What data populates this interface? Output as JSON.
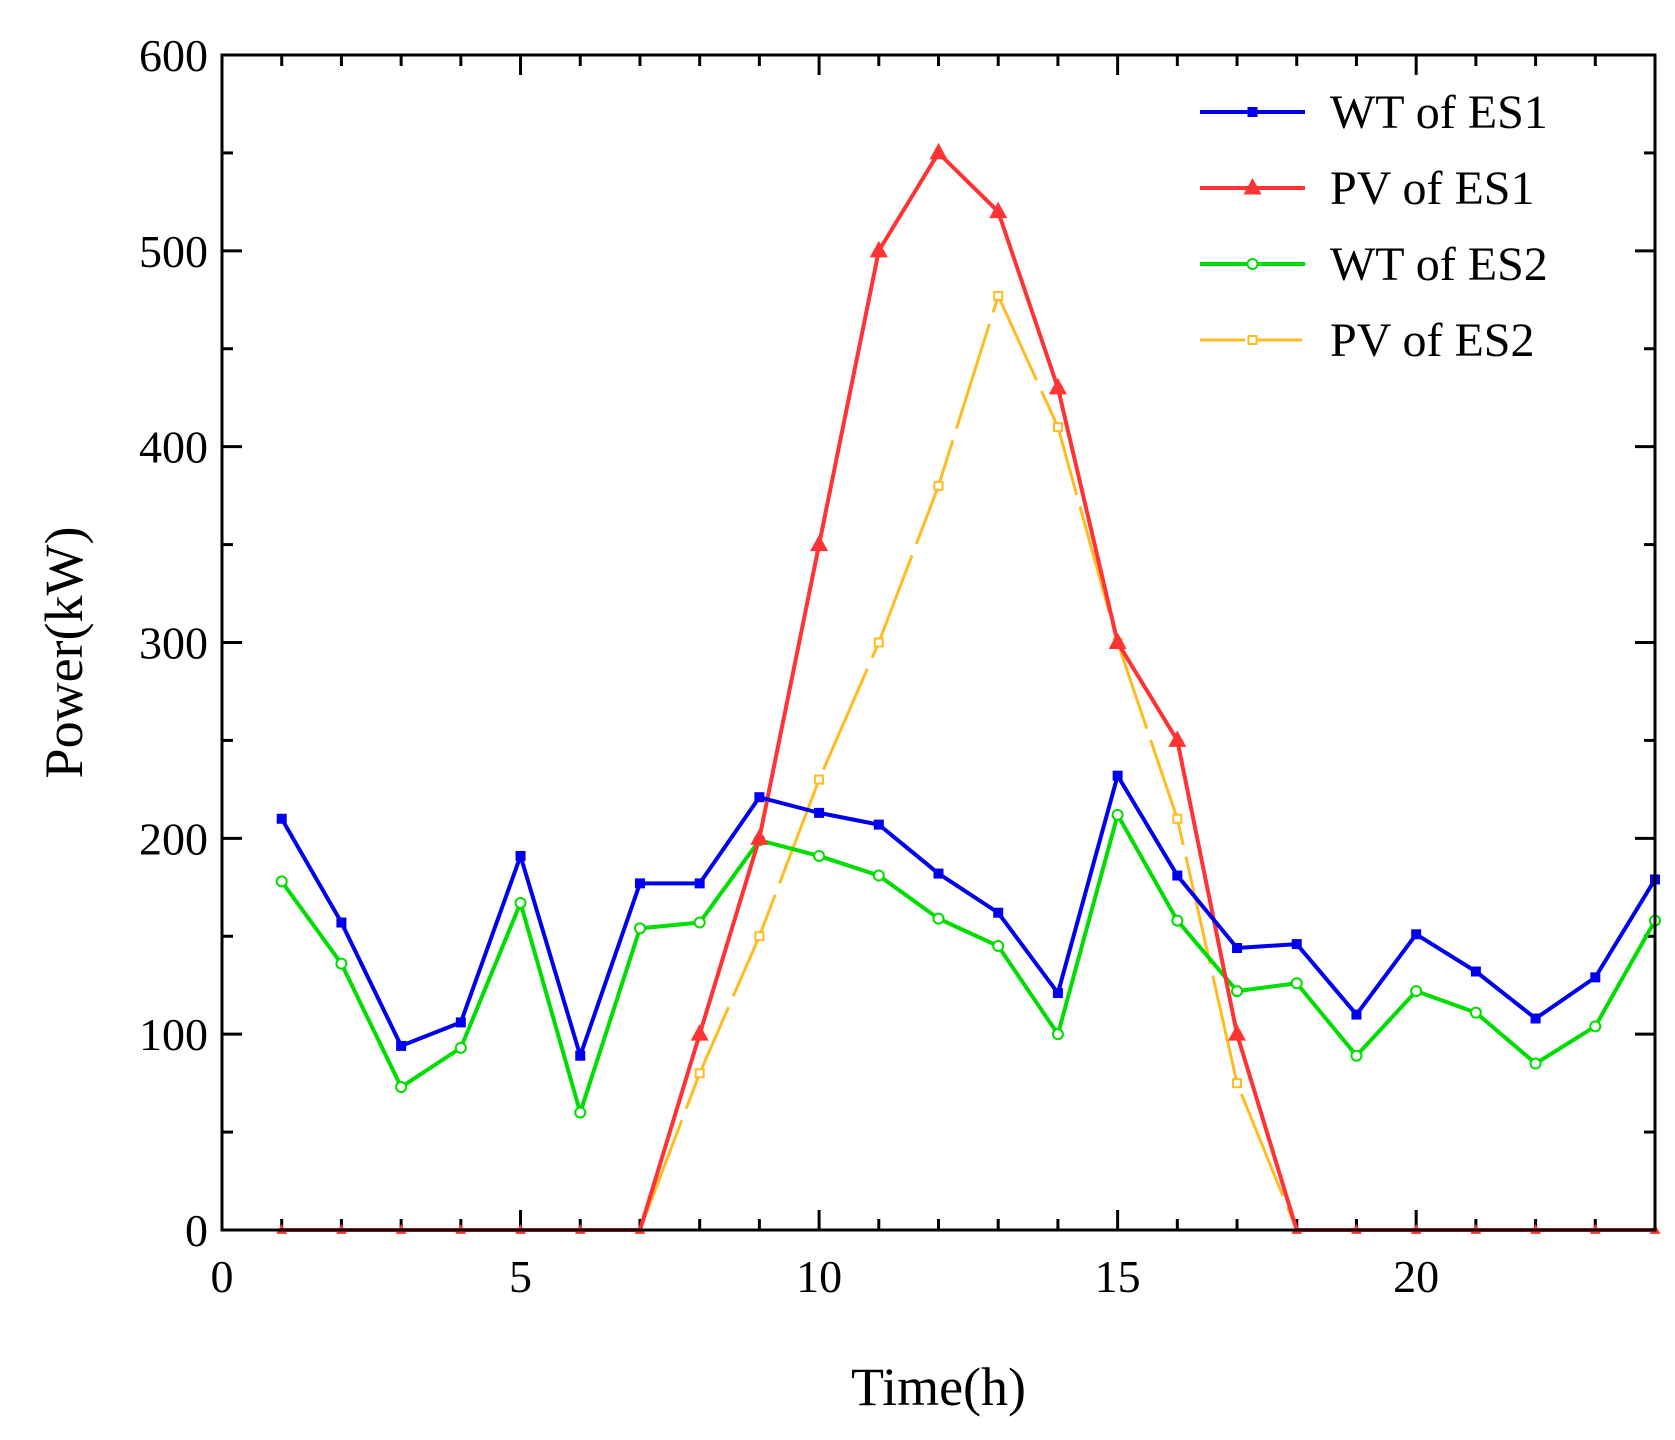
{
  "chart_data": {
    "type": "line",
    "title": "",
    "xlabel": "Time(h)",
    "ylabel": "Power(kW)",
    "xlim": [
      0,
      24
    ],
    "ylim": [
      0,
      600
    ],
    "xticks": [
      0,
      5,
      10,
      15,
      20
    ],
    "yticks": [
      0,
      100,
      200,
      300,
      400,
      500,
      600
    ],
    "grid": false,
    "legend_position": "top-right",
    "x": [
      1,
      2,
      3,
      4,
      5,
      6,
      7,
      8,
      9,
      10,
      11,
      12,
      13,
      14,
      15,
      16,
      17,
      18,
      19,
      20,
      21,
      22,
      23,
      24
    ],
    "series": [
      {
        "name": "WT of ES1",
        "color": "#0000ee",
        "marker": "square",
        "values": [
          210,
          157,
          94,
          106,
          191,
          89,
          177,
          177,
          221,
          213,
          207,
          182,
          162,
          121,
          232,
          181,
          144,
          146,
          110,
          151,
          132,
          108,
          129,
          179
        ]
      },
      {
        "name": "PV of ES1",
        "color": "#ff3333",
        "marker": "triangle",
        "values": [
          0,
          0,
          0,
          0,
          0,
          0,
          0,
          100,
          200,
          350,
          500,
          550,
          520,
          430,
          300,
          250,
          100,
          0,
          0,
          0,
          0,
          0,
          0,
          0
        ]
      },
      {
        "name": "WT of ES2",
        "color": "#00dd00",
        "marker": "circle",
        "values": [
          178,
          136,
          73,
          93,
          167,
          60,
          154,
          157,
          199,
          191,
          181,
          159,
          145,
          100,
          212,
          158,
          122,
          126,
          89,
          122,
          111,
          85,
          104,
          158
        ]
      },
      {
        "name": "PV of ES2",
        "color": "#ffbb22",
        "marker": "dash",
        "values": [
          0,
          0,
          0,
          0,
          0,
          0,
          0,
          80,
          150,
          230,
          300,
          380,
          477,
          410,
          300,
          210,
          75,
          0,
          0,
          0,
          0,
          0,
          0,
          0
        ]
      }
    ]
  }
}
